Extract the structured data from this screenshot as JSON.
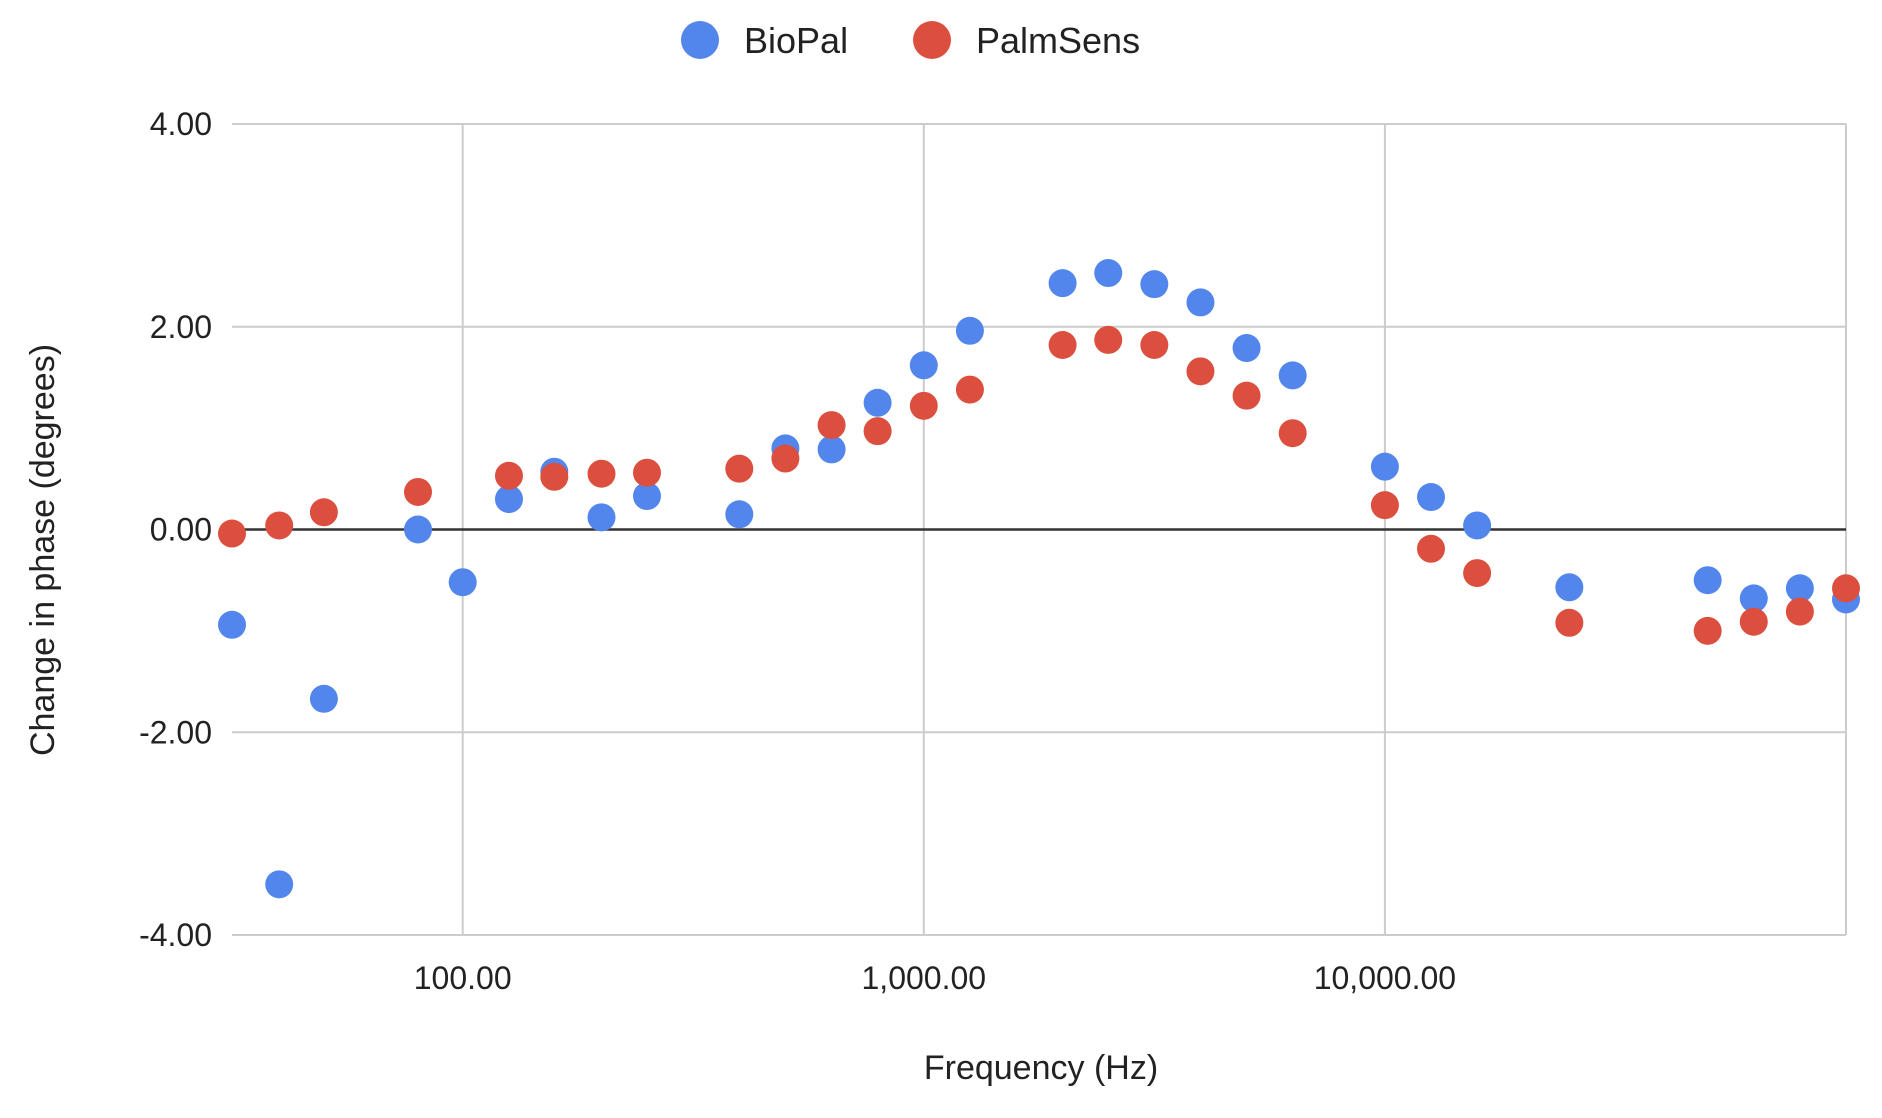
{
  "chart_data": {
    "type": "scatter",
    "title": "",
    "xlabel": "Frequency (Hz)",
    "ylabel": "Change in phase (degrees)",
    "x_scale": "log",
    "xlim": [
      31.6,
      100000
    ],
    "ylim": [
      -4,
      4
    ],
    "x_ticks": [
      100,
      1000,
      10000
    ],
    "x_tick_labels": [
      "100.00",
      "1,000.00",
      "10,000.00"
    ],
    "y_ticks": [
      4,
      2,
      0,
      -2,
      -4
    ],
    "y_tick_labels": [
      "4.00",
      "2.00",
      "0.00",
      "-2.00",
      "-4.00"
    ],
    "legend_position": "top",
    "grid": true,
    "series": [
      {
        "name": "BioPal",
        "color": "#5286ec",
        "points": [
          [
            31.6,
            -0.94
          ],
          [
            40,
            -3.5
          ],
          [
            50,
            -1.67
          ],
          [
            80,
            0.0
          ],
          [
            100,
            -0.52
          ],
          [
            126,
            0.3
          ],
          [
            158,
            0.57
          ],
          [
            200,
            0.12
          ],
          [
            251,
            0.33
          ],
          [
            398,
            0.15
          ],
          [
            501,
            0.8
          ],
          [
            631,
            0.79
          ],
          [
            794,
            1.25
          ],
          [
            1000,
            1.62
          ],
          [
            1259,
            1.96
          ],
          [
            2000,
            2.43
          ],
          [
            2512,
            2.53
          ],
          [
            3162,
            2.42
          ],
          [
            3981,
            2.24
          ],
          [
            5012,
            1.79
          ],
          [
            6310,
            1.52
          ],
          [
            10000,
            0.62
          ],
          [
            12589,
            0.32
          ],
          [
            15849,
            0.04
          ],
          [
            25119,
            -0.57
          ],
          [
            50119,
            -0.5
          ],
          [
            63096,
            -0.68
          ],
          [
            79433,
            -0.58
          ],
          [
            100000,
            -0.69
          ]
        ]
      },
      {
        "name": "PalmSens",
        "color": "#dc4f3e",
        "points": [
          [
            31.6,
            -0.04
          ],
          [
            40,
            0.04
          ],
          [
            50,
            0.17
          ],
          [
            80,
            0.37
          ],
          [
            126,
            0.53
          ],
          [
            158,
            0.52
          ],
          [
            200,
            0.55
          ],
          [
            251,
            0.56
          ],
          [
            398,
            0.6
          ],
          [
            501,
            0.7
          ],
          [
            631,
            1.03
          ],
          [
            794,
            0.97
          ],
          [
            1000,
            1.22
          ],
          [
            1259,
            1.38
          ],
          [
            2000,
            1.82
          ],
          [
            2512,
            1.87
          ],
          [
            3162,
            1.82
          ],
          [
            3981,
            1.56
          ],
          [
            5012,
            1.32
          ],
          [
            6310,
            0.95
          ],
          [
            10000,
            0.24
          ],
          [
            12589,
            -0.19
          ],
          [
            15849,
            -0.43
          ],
          [
            25119,
            -0.92
          ],
          [
            50119,
            -1.0
          ],
          [
            63096,
            -0.91
          ],
          [
            79433,
            -0.81
          ],
          [
            100000,
            -0.58
          ]
        ]
      }
    ]
  }
}
